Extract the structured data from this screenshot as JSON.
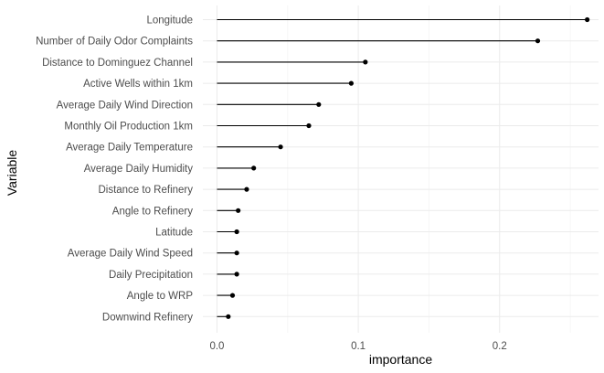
{
  "chart_data": {
    "type": "lollipop",
    "orientation": "horizontal",
    "xlabel": "importance",
    "ylabel": "Variable",
    "xlim": [
      -0.01,
      0.27
    ],
    "x_ticks": [
      0.0,
      0.1,
      0.2
    ],
    "x_tick_labels": [
      "0.0",
      "0.1",
      "0.2"
    ],
    "grid": true,
    "colors": {
      "marks": "#000000",
      "grid": "#ebebeb",
      "text": "#4d4d4d"
    },
    "categories": [
      "Longitude",
      "Number of Daily Odor Complaints",
      "Distance to Dominguez Channel",
      "Active Wells within 1km",
      "Average Daily Wind Direction",
      "Monthly Oil Production 1km",
      "Average Daily Temperature",
      "Average Daily Humidity",
      "Distance to Refinery",
      "Angle to Refinery",
      "Latitude",
      "Average Daily Wind Speed",
      "Daily Precipitation",
      "Angle to WRP",
      "Downwind Refinery"
    ],
    "values": [
      0.262,
      0.227,
      0.105,
      0.095,
      0.072,
      0.065,
      0.045,
      0.026,
      0.021,
      0.015,
      0.014,
      0.014,
      0.014,
      0.011,
      0.008
    ]
  }
}
